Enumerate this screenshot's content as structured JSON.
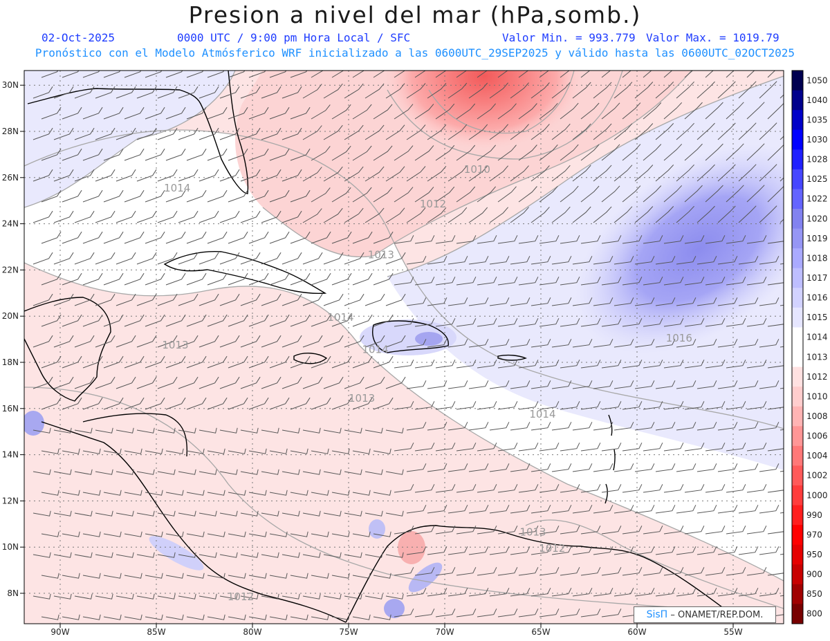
{
  "header": {
    "title": "Presion a nivel del mar (hPa,somb.)",
    "date": "02-Oct-2025",
    "time_info": "0000 UTC / 9:00 pm Hora Local / SFC",
    "min_value": "Valor Min. = 993.779",
    "max_value": "Valor Max. = 1019.79",
    "forecast_info": "Pronóstico con el Modelo Atmósferico WRF inicializado a las 0600UTC_29SEP2025 y válido hasta las  0600UTC_02OCT2025"
  },
  "axes": {
    "lat_labels": [
      "30N",
      "28N",
      "26N",
      "24N",
      "22N",
      "20N",
      "18N",
      "16N",
      "14N",
      "12N",
      "10N",
      "8N"
    ],
    "lat_values": [
      30,
      28,
      26,
      24,
      22,
      20,
      18,
      16,
      14,
      12,
      10,
      8
    ],
    "lon_labels": [
      "90W",
      "85W",
      "80W",
      "75W",
      "70W",
      "65W",
      "60W",
      "55W"
    ],
    "lon_values": [
      -90,
      -85,
      -80,
      -75,
      -70,
      -65,
      -60,
      -55
    ]
  },
  "colorbar": {
    "labels": [
      "1050",
      "1040",
      "1035",
      "1030",
      "1028",
      "1025",
      "1022",
      "1020",
      "1019",
      "1018",
      "1017",
      "1016",
      "1015",
      "1014",
      "1013",
      "1012",
      "1010",
      "1008",
      "1006",
      "1004",
      "1002",
      "1000",
      "990",
      "970",
      "950",
      "900",
      "850",
      "800"
    ],
    "colors": [
      "#000050",
      "#00008c",
      "#0000c8",
      "#0000ff",
      "#2020ff",
      "#4646ff",
      "#6464ff",
      "#8282f0",
      "#9696f5",
      "#aaaaff",
      "#bebeff",
      "#d2d2ff",
      "#e6e6ff",
      "#ffffff",
      "#ffffff",
      "#ffe1e1",
      "#ffcdcd",
      "#ffb4b4",
      "#ff9696",
      "#ff7878",
      "#ff5a5a",
      "#ff3c3c",
      "#ff1e1e",
      "#ff0000",
      "#e60000",
      "#c80000",
      "#a00000",
      "#780000"
    ]
  },
  "contour_labels": [
    {
      "text": "1014",
      "lon": -84.6,
      "lat": 25.4
    },
    {
      "text": "1010",
      "lon": -69.0,
      "lat": 26.2
    },
    {
      "text": "1012",
      "lon": -71.3,
      "lat": 24.7
    },
    {
      "text": "1013",
      "lon": -74.0,
      "lat": 22.5
    },
    {
      "text": "1014",
      "lon": -76.1,
      "lat": 19.8
    },
    {
      "text": "1013",
      "lon": -84.7,
      "lat": 18.6
    },
    {
      "text": "1014",
      "lon": -74.3,
      "lat": 18.4
    },
    {
      "text": "1016",
      "lon": -58.5,
      "lat": 18.9
    },
    {
      "text": "1013",
      "lon": -75.0,
      "lat": 16.3
    },
    {
      "text": "1014",
      "lon": -65.6,
      "lat": 15.6
    },
    {
      "text": "1013",
      "lon": -66.1,
      "lat": 10.5
    },
    {
      "text": "1012",
      "lon": -65.1,
      "lat": 9.8
    },
    {
      "text": "1012",
      "lon": -81.3,
      "lat": 7.7
    }
  ],
  "credit": {
    "logo": "SisΠ",
    "text": "– ONAMET/REP.DOM."
  }
}
